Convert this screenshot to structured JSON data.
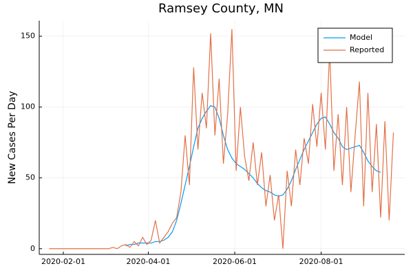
{
  "chart_data": {
    "type": "line",
    "title": "Ramsey County, MN",
    "y_label": "New Cases Per Day",
    "x": [
      "2020-01-22",
      "2020-01-25",
      "2020-01-28",
      "2020-01-31",
      "2020-02-03",
      "2020-02-06",
      "2020-02-09",
      "2020-02-12",
      "2020-02-15",
      "2020-02-18",
      "2020-02-21",
      "2020-02-24",
      "2020-02-27",
      "2020-03-01",
      "2020-03-04",
      "2020-03-07",
      "2020-03-10",
      "2020-03-13",
      "2020-03-16",
      "2020-03-19",
      "2020-03-22",
      "2020-03-25",
      "2020-03-28",
      "2020-03-31",
      "2020-04-03",
      "2020-04-06",
      "2020-04-09",
      "2020-04-12",
      "2020-04-15",
      "2020-04-18",
      "2020-04-21",
      "2020-04-24",
      "2020-04-27",
      "2020-04-30",
      "2020-05-03",
      "2020-05-06",
      "2020-05-09",
      "2020-05-12",
      "2020-05-15",
      "2020-05-18",
      "2020-05-21",
      "2020-05-24",
      "2020-05-27",
      "2020-05-30",
      "2020-06-02",
      "2020-06-05",
      "2020-06-08",
      "2020-06-11",
      "2020-06-14",
      "2020-06-17",
      "2020-06-20",
      "2020-06-23",
      "2020-06-26",
      "2020-06-29",
      "2020-07-02",
      "2020-07-05",
      "2020-07-08",
      "2020-07-11",
      "2020-07-14",
      "2020-07-17",
      "2020-07-20",
      "2020-07-23",
      "2020-07-26",
      "2020-07-29",
      "2020-08-01",
      "2020-08-04",
      "2020-08-07",
      "2020-08-10",
      "2020-08-13",
      "2020-08-16",
      "2020-08-19",
      "2020-08-22",
      "2020-08-25",
      "2020-08-28",
      "2020-08-31",
      "2020-09-03",
      "2020-09-06",
      "2020-09-09",
      "2020-09-12",
      "2020-09-15",
      "2020-09-18",
      "2020-09-21"
    ],
    "series": [
      {
        "name": "Model",
        "color": "#009af9",
        "values": [
          null,
          null,
          null,
          null,
          null,
          null,
          null,
          null,
          null,
          null,
          null,
          null,
          null,
          null,
          null,
          null,
          null,
          null,
          2,
          3,
          3,
          4,
          4,
          4,
          4,
          5,
          5,
          6,
          8,
          12,
          20,
          32,
          45,
          58,
          72,
          85,
          92,
          97,
          101,
          100,
          92,
          80,
          70,
          64,
          60,
          58,
          56,
          53,
          50,
          46,
          43,
          41,
          40,
          38,
          37,
          38,
          42,
          48,
          56,
          63,
          70,
          76,
          82,
          88,
          92,
          93,
          88,
          82,
          78,
          72,
          70,
          71,
          72,
          73,
          68,
          62,
          58,
          55,
          54,
          null,
          null,
          null
        ]
      },
      {
        "name": "Reported",
        "color": "#e26f46",
        "values": [
          0,
          0,
          0,
          0,
          0,
          0,
          0,
          0,
          0,
          0,
          0,
          0,
          0,
          0,
          0,
          1,
          0,
          2,
          3,
          1,
          5,
          2,
          8,
          3,
          6,
          20,
          4,
          8,
          12,
          18,
          22,
          40,
          80,
          45,
          128,
          70,
          110,
          85,
          152,
          80,
          120,
          60,
          95,
          155,
          55,
          100,
          65,
          48,
          75,
          45,
          68,
          30,
          52,
          20,
          38,
          0,
          55,
          30,
          70,
          45,
          78,
          60,
          102,
          72,
          110,
          70,
          140,
          55,
          95,
          45,
          100,
          40,
          80,
          118,
          30,
          110,
          40,
          88,
          22,
          90,
          20,
          82
        ]
      }
    ],
    "xlim": [
      "2020-01-15",
      "2020-09-29"
    ],
    "xticks": [
      "2020-02-01",
      "2020-04-01",
      "2020-06-01",
      "2020-08-01"
    ],
    "ylim": [
      -4,
      161
    ],
    "yticks": [
      0,
      50,
      100,
      150
    ],
    "grid": true,
    "legend_position": "top-right"
  }
}
